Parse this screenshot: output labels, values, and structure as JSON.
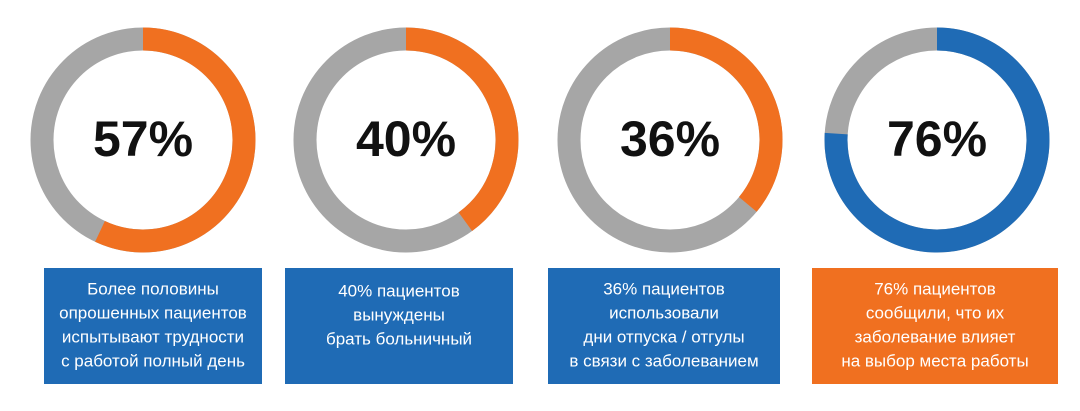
{
  "chart_data": [
    {
      "type": "donut",
      "values": [
        57
      ],
      "value_labels": [
        "57%"
      ],
      "color": "#f07020",
      "track_color": "#a6a6a6",
      "caption_color": "#1f6bb5",
      "caption": [
        "Более половины",
        "опрошенных пациентов",
        "испытывают трудности",
        "с работой полный день"
      ]
    },
    {
      "type": "donut",
      "values": [
        40
      ],
      "value_labels": [
        "40%"
      ],
      "color": "#f07020",
      "track_color": "#a6a6a6",
      "caption_color": "#1f6bb5",
      "caption": [
        "40% пациентов",
        "вынуждены",
        "брать больничный"
      ]
    },
    {
      "type": "donut",
      "values": [
        36
      ],
      "value_labels": [
        "36%"
      ],
      "color": "#f07020",
      "track_color": "#a6a6a6",
      "caption_color": "#1f6bb5",
      "caption": [
        "36% пациентов",
        "использовали",
        "дни отпуска / отгулы",
        "в связи с заболеванием"
      ]
    },
    {
      "type": "donut",
      "values": [
        76
      ],
      "value_labels": [
        "76%"
      ],
      "color": "#1f6bb5",
      "track_color": "#a6a6a6",
      "caption_color": "#f07020",
      "caption": [
        "76% пациентов",
        "сообщили, что их",
        "заболевание влияет",
        "на выбор места работы"
      ]
    }
  ]
}
